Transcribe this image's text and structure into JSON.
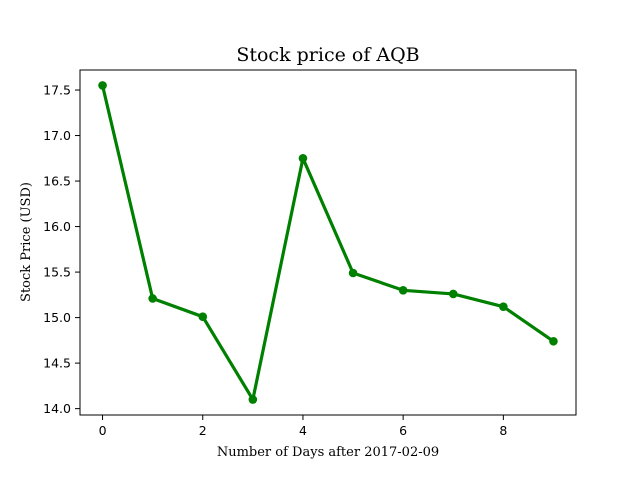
{
  "chart_data": {
    "type": "line",
    "title": "Stock price of AQB",
    "xlabel": "Number of Days after 2017-02-09",
    "ylabel": "Stock Price (USD)",
    "x": [
      0,
      1,
      2,
      3,
      4,
      5,
      6,
      7,
      8,
      9
    ],
    "series": [
      {
        "values": [
          17.55,
          15.21,
          15.01,
          14.1,
          16.75,
          15.49,
          15.3,
          15.26,
          15.12,
          14.74
        ]
      }
    ],
    "xlim": [
      -0.45,
      9.45
    ],
    "ylim": [
      13.93,
      17.72
    ],
    "xticks": [
      0,
      2,
      4,
      6,
      8
    ],
    "yticks": [
      14.0,
      14.5,
      15.0,
      15.5,
      16.0,
      16.5,
      17.0,
      17.5
    ],
    "xtick_labels": [
      "0",
      "2",
      "4",
      "6",
      "8"
    ],
    "ytick_labels": [
      "14.0",
      "14.5",
      "15.0",
      "15.5",
      "16.0",
      "16.5",
      "17.0",
      "17.5"
    ],
    "grid": false,
    "legend": "none",
    "colors": {
      "line": "#008000",
      "marker": "#008000"
    }
  }
}
